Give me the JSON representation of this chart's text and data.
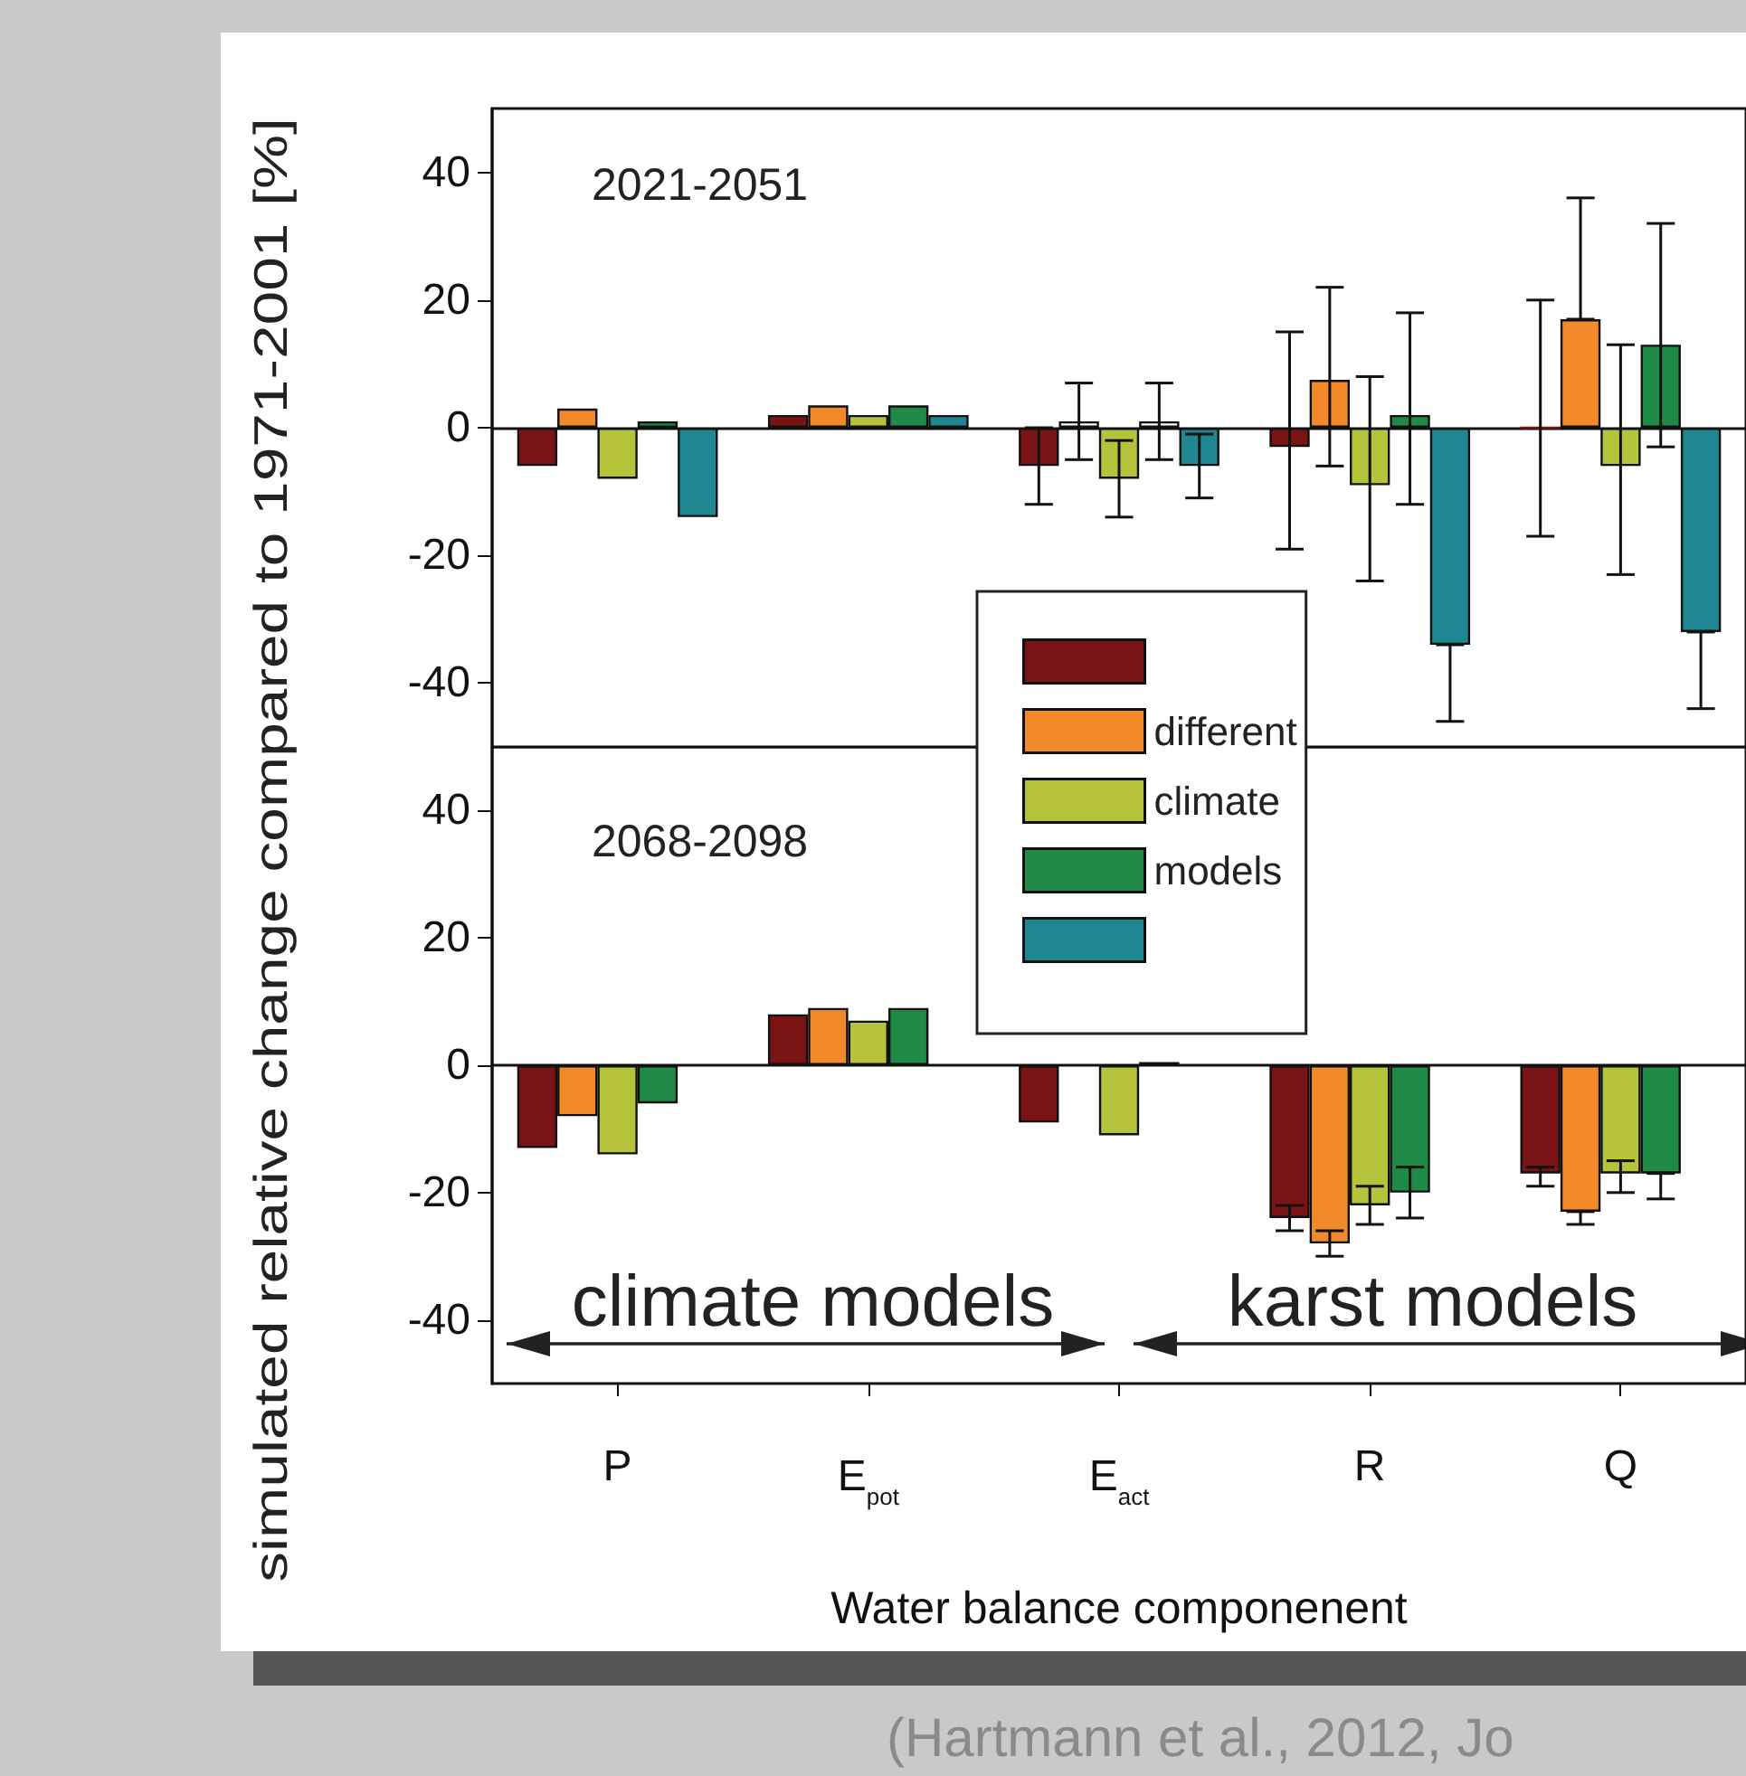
{
  "chart_data": [
    {
      "type": "bar",
      "ylabel": "simulated relative change compared to 1971-2001 [%]",
      "ylim": [
        -50,
        50
      ],
      "yticks": [
        -40,
        -20,
        0,
        20,
        40
      ],
      "tick_labels": "y",
      "legend": "center",
      "annotations": [
        "2021-2051"
      ],
      "series": [
        {
          "color": "#7a1414",
          "values": [
            -6,
            2,
            -6,
            -3,
            0
          ],
          "errors": [
            null,
            null,
            6,
            [
              -19,
              15
            ],
            [
              -17,
              20
            ]
          ]
        },
        {
          "name": "different",
          "color": "#f28a2c",
          "colors": [
            "#f28a2c",
            "#f28a2c",
            "#ffffff",
            "#f28a2c",
            "#f28a2c"
          ],
          "values": [
            3,
            3.5,
            1,
            7.5,
            17
          ],
          "errors": [
            null,
            null,
            [
              -5,
              7
            ],
            [
              -6,
              22
            ],
            [
              17,
              36
            ]
          ]
        },
        {
          "name": "climate",
          "color": "#b5c43a",
          "values": [
            -8,
            2,
            -8,
            -9,
            -6
          ],
          "errors": [
            null,
            null,
            [
              -14,
              -2
            ],
            [
              -24,
              8
            ],
            [
              -23,
              13
            ]
          ]
        },
        {
          "name": "models",
          "color": "#1f8a45",
          "colors": [
            "#1f8a45",
            "#1f8a45",
            "#ffffff",
            "#1f8a45",
            "#1f8a45"
          ],
          "values": [
            1,
            3.5,
            1,
            2,
            13
          ],
          "errors": [
            null,
            null,
            [
              -5,
              7
            ],
            [
              -12,
              18
            ],
            [
              -3,
              32
            ]
          ]
        },
        {
          "color": "#1e8791",
          "values": [
            -14,
            2,
            -6,
            -34,
            -32
          ],
          "errors": [
            null,
            null,
            [
              -11,
              -1
            ],
            [
              -46,
              -34
            ],
            [
              -44,
              -32
            ]
          ]
        }
      ]
    },
    {
      "type": "bar",
      "categories": [
        "P",
        "E$_{pot}$",
        "E$_{act}$",
        "R",
        "Q"
      ],
      "xlabel": "Water balance componenent",
      "ylim": [
        -50,
        50
      ],
      "yticks": [
        -40,
        -20,
        0,
        20,
        40
      ],
      "annotations": [
        "2068-2098",
        "climate models",
        "karst models",
        "(Hartmann et al., 2012, Jo"
      ],
      "series": [
        {
          "color": "#7a1414",
          "values": [
            -13,
            8,
            -9,
            -24,
            -17
          ],
          "errors": [
            null,
            null,
            null,
            [
              -26,
              -22
            ],
            [
              -19,
              -16
            ]
          ]
        },
        {
          "color": "#f28a2c",
          "values": [
            -8,
            9,
            null,
            -28,
            -23
          ],
          "errors": [
            null,
            null,
            null,
            [
              -30,
              -26
            ],
            [
              -25,
              -23
            ]
          ]
        },
        {
          "color": "#b5c43a",
          "values": [
            -14,
            7,
            -11,
            -22,
            -17
          ],
          "errors": [
            null,
            null,
            null,
            [
              -25,
              -19
            ],
            [
              -20,
              -15
            ]
          ]
        },
        {
          "color": "#1f8a45",
          "values": [
            -6,
            9,
            0.5,
            -20,
            -17
          ],
          "errors": [
            null,
            null,
            null,
            [
              -24,
              -16
            ],
            [
              -21,
              -17
            ]
          ]
        },
        {
          "color": "#1e8791",
          "values": [
            null,
            null,
            null,
            null,
            null
          ]
        }
      ]
    }
  ]
}
